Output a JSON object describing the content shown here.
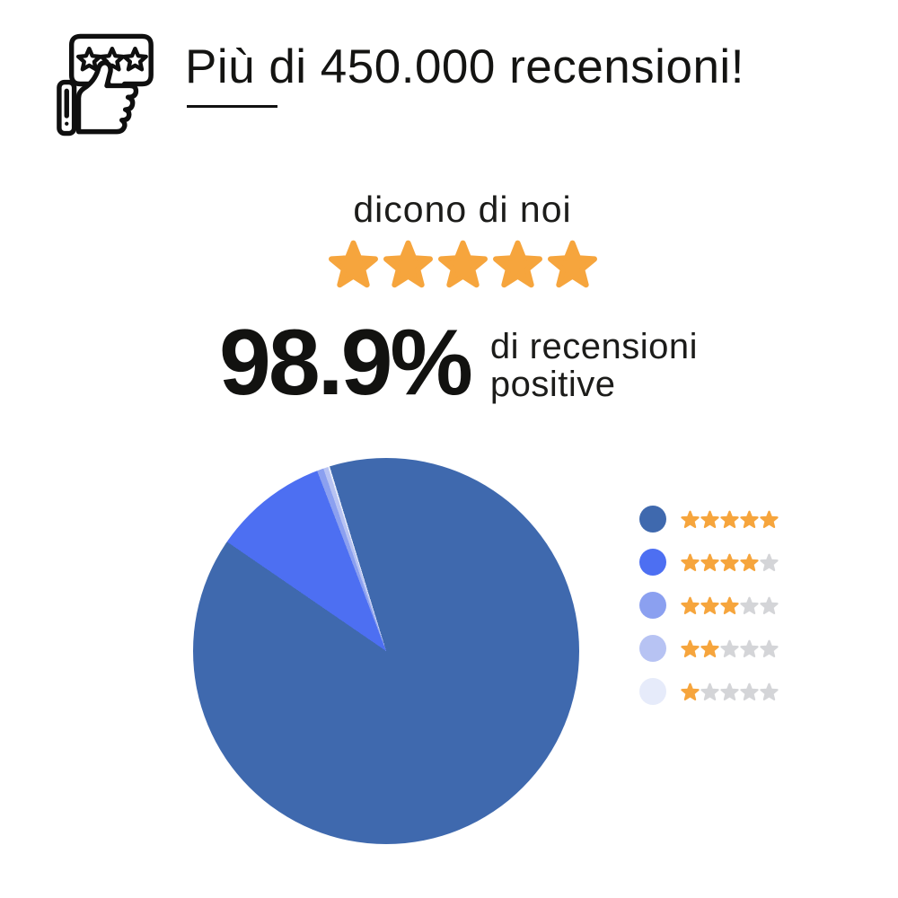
{
  "header": {
    "title": "Più di 450.000 recensioni!",
    "icon": "review-thumbs-up-icon"
  },
  "summary": {
    "subtitle": "dicono di noi",
    "rating_stars": 5,
    "stat_value": "98.9%",
    "stat_label_line1": "di recensioni",
    "stat_label_line2": "positive"
  },
  "colors": {
    "text": "#1b1b19",
    "star_orange": "#F6A53D",
    "star_gray": "#D4D5D8",
    "icon_stroke": "#0f0f0f"
  },
  "chart_data": {
    "type": "pie",
    "title": "dicono di noi",
    "units": "% di recensioni",
    "start_angle_deg": -17,
    "direction": "clockwise",
    "legend_position": "right",
    "legend_max_stars": 5,
    "slices": [
      {
        "stars": 5,
        "value_pct": 89.3,
        "color": "#3F69AE"
      },
      {
        "stars": 4,
        "value_pct": 9.6,
        "color": "#4D6FF2"
      },
      {
        "stars": 3,
        "value_pct": 0.55,
        "color": "#8BA0F0"
      },
      {
        "stars": 2,
        "value_pct": 0.4,
        "color": "#B7C3F3"
      },
      {
        "stars": 1,
        "value_pct": 0.15,
        "color": "#E6EBFA"
      }
    ],
    "positive_share_pct": 98.9
  }
}
